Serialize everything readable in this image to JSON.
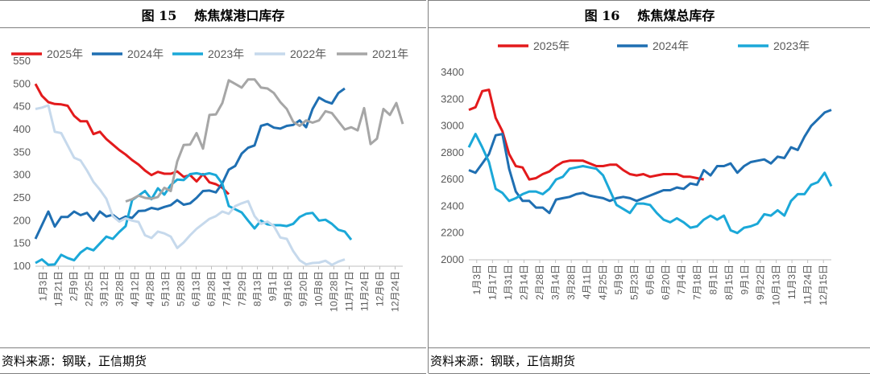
{
  "figures": [
    {
      "id": "left",
      "fig_num": "图 15",
      "title": "炼焦煤港口库存",
      "source": "资料来源：钢联，正信期货"
    },
    {
      "id": "right",
      "fig_num": "图 16",
      "title": "炼焦煤总库存",
      "source": "资料来源：钢联，正信期货"
    }
  ],
  "chart_data": [
    {
      "type": "line",
      "title": "炼焦煤港口库存",
      "ylim": [
        100,
        550
      ],
      "yticks": [
        100,
        150,
        200,
        250,
        300,
        350,
        400,
        450,
        500,
        550
      ],
      "x_ticks": [
        "1月3日",
        "1月21日",
        "2月9日",
        "2月25日",
        "3月12日",
        "3月28日",
        "4月12日",
        "4月28日",
        "5月13日",
        "5月28日",
        "6月13日",
        "6月28日",
        "7月14日",
        "7月29日",
        "8月13日",
        "9月1日",
        "9月16日",
        "9月20日",
        "10月8日",
        "10月28日",
        "11月17日",
        "11月24日",
        "12月6日",
        "12月24日"
      ],
      "legend_position": "top",
      "series": [
        {
          "name": "2025年",
          "color": "#e31a1c",
          "values": [
            500,
            474,
            460,
            456,
            455,
            452,
            430,
            418,
            418,
            390,
            395,
            379,
            367,
            355,
            345,
            333,
            323,
            310,
            300,
            307,
            303,
            303,
            308,
            296,
            300,
            286,
            302,
            284,
            280,
            272,
            258
          ]
        },
        {
          "name": "2024年",
          "color": "#1f6fb2",
          "values": [
            160,
            190,
            220,
            187,
            208,
            208,
            220,
            212,
            217,
            200,
            220,
            209,
            213,
            202,
            209,
            206,
            221,
            222,
            228,
            225,
            230,
            234,
            245,
            235,
            238,
            250,
            265,
            266,
            262,
            282,
            312,
            320,
            347,
            360,
            365,
            408,
            412,
            404,
            402,
            408,
            410,
            420,
            405,
            445,
            470,
            462,
            457,
            480,
            490
          ]
        },
        {
          "name": "2023年",
          "color": "#1ba8d8",
          "values": [
            107,
            115,
            103,
            104,
            125,
            118,
            113,
            130,
            140,
            135,
            150,
            165,
            160,
            175,
            188,
            245,
            255,
            265,
            247,
            271,
            257,
            278,
            290,
            289,
            302,
            304,
            301,
            304,
            300,
            281,
            232,
            225,
            218,
            200,
            183,
            200,
            192,
            190,
            190,
            188,
            193,
            208,
            215,
            217,
            200,
            202,
            193,
            180,
            176,
            158
          ]
        },
        {
          "name": "2022年",
          "color": "#c6d9ec",
          "values": [
            445,
            448,
            453,
            395,
            392,
            365,
            338,
            332,
            310,
            285,
            268,
            248,
            210,
            198,
            205,
            200,
            197,
            168,
            162,
            176,
            172,
            165,
            140,
            152,
            168,
            182,
            193,
            204,
            210,
            220,
            215,
            232,
            238,
            243,
            210,
            193,
            198,
            188,
            163,
            160,
            133,
            113,
            104,
            107,
            108,
            112,
            103,
            110,
            115
          ]
        },
        {
          "name": "2021年",
          "color": "#a6a6a6",
          "values": [
            null,
            null,
            null,
            null,
            null,
            null,
            null,
            null,
            null,
            null,
            null,
            null,
            null,
            null,
            242,
            247,
            255,
            250,
            248,
            252,
            272,
            265,
            330,
            366,
            367,
            392,
            358,
            432,
            433,
            458,
            508,
            500,
            492,
            510,
            510,
            492,
            490,
            480,
            460,
            445,
            417,
            408,
            420,
            415,
            420,
            440,
            436,
            418,
            400,
            405,
            398,
            447,
            368,
            380,
            445,
            432,
            458,
            412
          ]
        }
      ]
    },
    {
      "type": "line",
      "title": "炼焦煤总库存",
      "ylim": [
        2000,
        3400
      ],
      "yticks": [
        2000,
        2200,
        2400,
        2600,
        2800,
        3000,
        3200,
        3400
      ],
      "x_ticks": [
        "1月3日",
        "1月17日",
        "1月31日",
        "2月14日",
        "2月28日",
        "3月14日",
        "3月28日",
        "4月11日",
        "4月25日",
        "5月9日",
        "5月23日",
        "6月6日",
        "6月20日",
        "7月4日",
        "7月18日",
        "8月1日",
        "8月15日",
        "9月1日",
        "9月22日",
        "10月13日",
        "11月3日",
        "11月24日",
        "12月15日"
      ],
      "legend_position": "top",
      "series": [
        {
          "name": "2025年",
          "color": "#e31a1c",
          "values": [
            3120,
            3140,
            3260,
            3270,
            3060,
            2960,
            2790,
            2700,
            2690,
            2600,
            2610,
            2640,
            2660,
            2700,
            2730,
            2740,
            2740,
            2740,
            2720,
            2700,
            2700,
            2710,
            2710,
            2670,
            2640,
            2630,
            2640,
            2620,
            2630,
            2640,
            2640,
            2640,
            2620,
            2620,
            2610,
            2600
          ]
        },
        {
          "name": "2024年",
          "color": "#1f6fb2",
          "values": [
            2670,
            2650,
            2720,
            2790,
            2930,
            2940,
            2680,
            2510,
            2440,
            2440,
            2390,
            2390,
            2350,
            2450,
            2460,
            2470,
            2490,
            2500,
            2480,
            2470,
            2460,
            2440,
            2460,
            2470,
            2460,
            2440,
            2460,
            2480,
            2500,
            2520,
            2520,
            2540,
            2530,
            2570,
            2560,
            2670,
            2630,
            2700,
            2700,
            2720,
            2650,
            2700,
            2730,
            2740,
            2750,
            2720,
            2770,
            2760,
            2840,
            2820,
            2920,
            3000,
            3050,
            3100,
            3120
          ]
        },
        {
          "name": "2023年",
          "color": "#1ba8d8",
          "values": [
            2840,
            2940,
            2840,
            2730,
            2530,
            2500,
            2440,
            2460,
            2490,
            2510,
            2510,
            2490,
            2530,
            2600,
            2620,
            2680,
            2690,
            2700,
            2690,
            2680,
            2630,
            2520,
            2410,
            2380,
            2350,
            2420,
            2420,
            2410,
            2350,
            2300,
            2280,
            2310,
            2280,
            2240,
            2250,
            2300,
            2330,
            2300,
            2330,
            2220,
            2200,
            2240,
            2250,
            2270,
            2340,
            2330,
            2370,
            2330,
            2440,
            2490,
            2490,
            2560,
            2580,
            2650,
            2550
          ]
        }
      ]
    }
  ]
}
